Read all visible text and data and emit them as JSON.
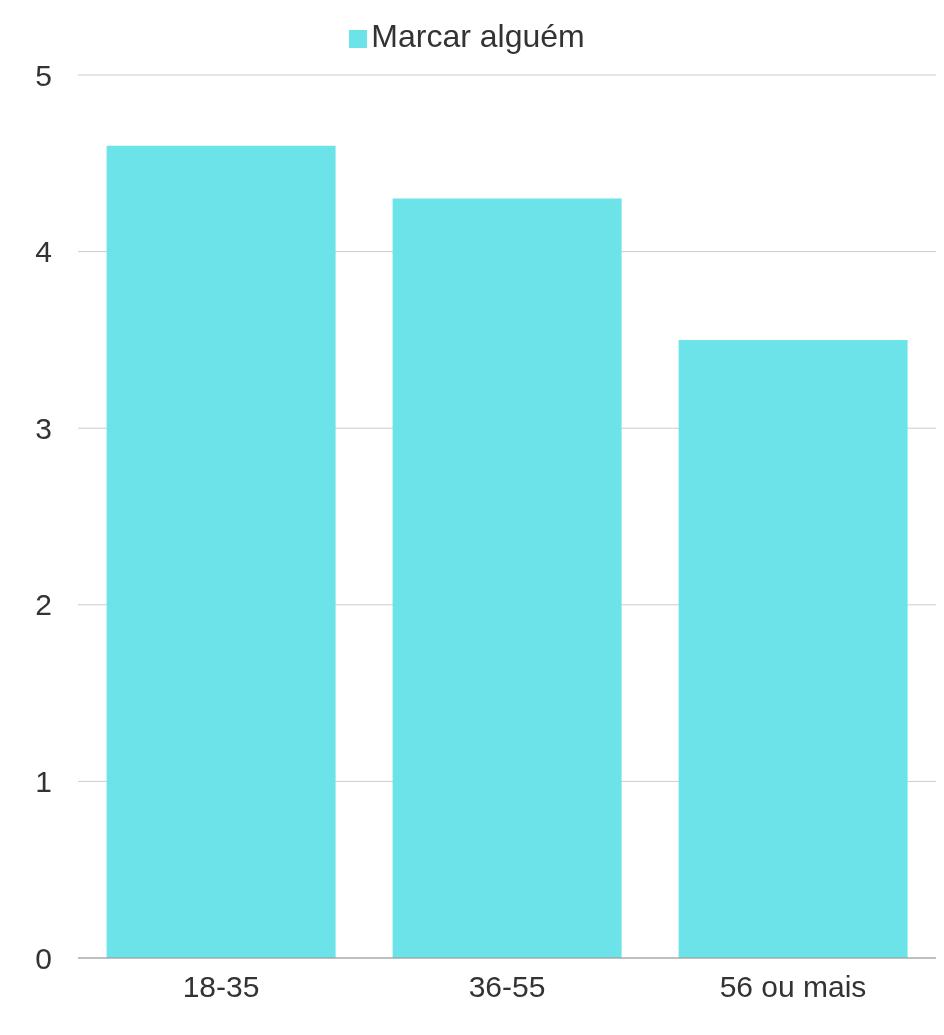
{
  "chart_data": {
    "type": "bar",
    "categories": [
      "18-35",
      "36-55",
      "56 ou mais"
    ],
    "series": [
      {
        "name": "Marcar alguém",
        "color": "#6ce3e8",
        "values": [
          4.6,
          4.3,
          3.5
        ]
      }
    ],
    "ylim": [
      0,
      5
    ],
    "yticks": [
      0,
      1,
      2,
      3,
      4,
      5
    ],
    "grid": "y",
    "legend": "top"
  }
}
